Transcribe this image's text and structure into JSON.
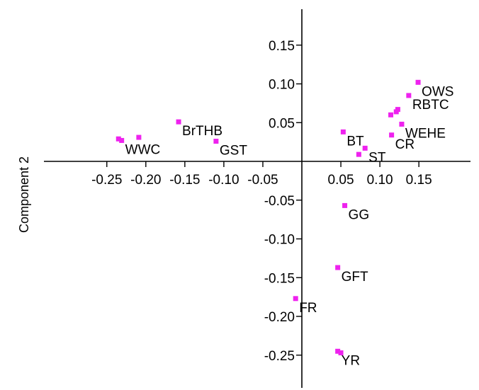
{
  "chart_data": {
    "type": "scatter",
    "title": "",
    "xlabel": "",
    "ylabel": "Component 2",
    "xlim": [
      -0.29,
      0.19
    ],
    "ylim": [
      -0.29,
      0.19
    ],
    "grid": false,
    "marker_color": "#ee22ee",
    "x_ticks": [
      {
        "value": -0.25,
        "label": "-0.25"
      },
      {
        "value": -0.2,
        "label": "-0.20"
      },
      {
        "value": -0.15,
        "label": "-0.15"
      },
      {
        "value": -0.1,
        "label": "-0.10"
      },
      {
        "value": -0.05,
        "label": "-0.05"
      },
      {
        "value": 0.05,
        "label": "0.05"
      },
      {
        "value": 0.1,
        "label": "0.10"
      },
      {
        "value": 0.15,
        "label": "0.15"
      }
    ],
    "y_ticks": [
      {
        "value": 0.15,
        "label": "0.15"
      },
      {
        "value": 0.1,
        "label": "0.10"
      },
      {
        "value": 0.05,
        "label": "0.05"
      },
      {
        "value": -0.05,
        "label": "-0.05"
      },
      {
        "value": -0.1,
        "label": "-0.10"
      },
      {
        "value": -0.15,
        "label": "-0.15"
      },
      {
        "value": -0.2,
        "label": "-0.20"
      },
      {
        "value": -0.25,
        "label": "-0.25"
      }
    ],
    "points": [
      {
        "x": -0.235,
        "y": 0.029,
        "label": ""
      },
      {
        "x": -0.231,
        "y": 0.027,
        "label": "WWC"
      },
      {
        "x": -0.209,
        "y": 0.031,
        "label": ""
      },
      {
        "x": -0.158,
        "y": 0.051,
        "label": "BrTHB"
      },
      {
        "x": -0.11,
        "y": 0.026,
        "label": "GST"
      },
      {
        "x": 0.053,
        "y": 0.038,
        "label": "BT"
      },
      {
        "x": 0.073,
        "y": 0.009,
        "label": ""
      },
      {
        "x": 0.081,
        "y": 0.017,
        "label": "ST"
      },
      {
        "x": 0.115,
        "y": 0.034,
        "label": "CR"
      },
      {
        "x": 0.114,
        "y": 0.06,
        "label": ""
      },
      {
        "x": 0.121,
        "y": 0.064,
        "label": ""
      },
      {
        "x": 0.123,
        "y": 0.067,
        "label": ""
      },
      {
        "x": 0.128,
        "y": 0.048,
        "label": "WEHE"
      },
      {
        "x": 0.137,
        "y": 0.085,
        "label": "RBTC"
      },
      {
        "x": 0.149,
        "y": 0.102,
        "label": "OWS"
      },
      {
        "x": 0.055,
        "y": -0.057,
        "label": "GG"
      },
      {
        "x": 0.046,
        "y": -0.137,
        "label": "GFT"
      },
      {
        "x": -0.008,
        "y": -0.177,
        "label": "FR"
      },
      {
        "x": 0.046,
        "y": -0.245,
        "label": "YR"
      },
      {
        "x": 0.05,
        "y": -0.247,
        "label": ""
      }
    ]
  }
}
